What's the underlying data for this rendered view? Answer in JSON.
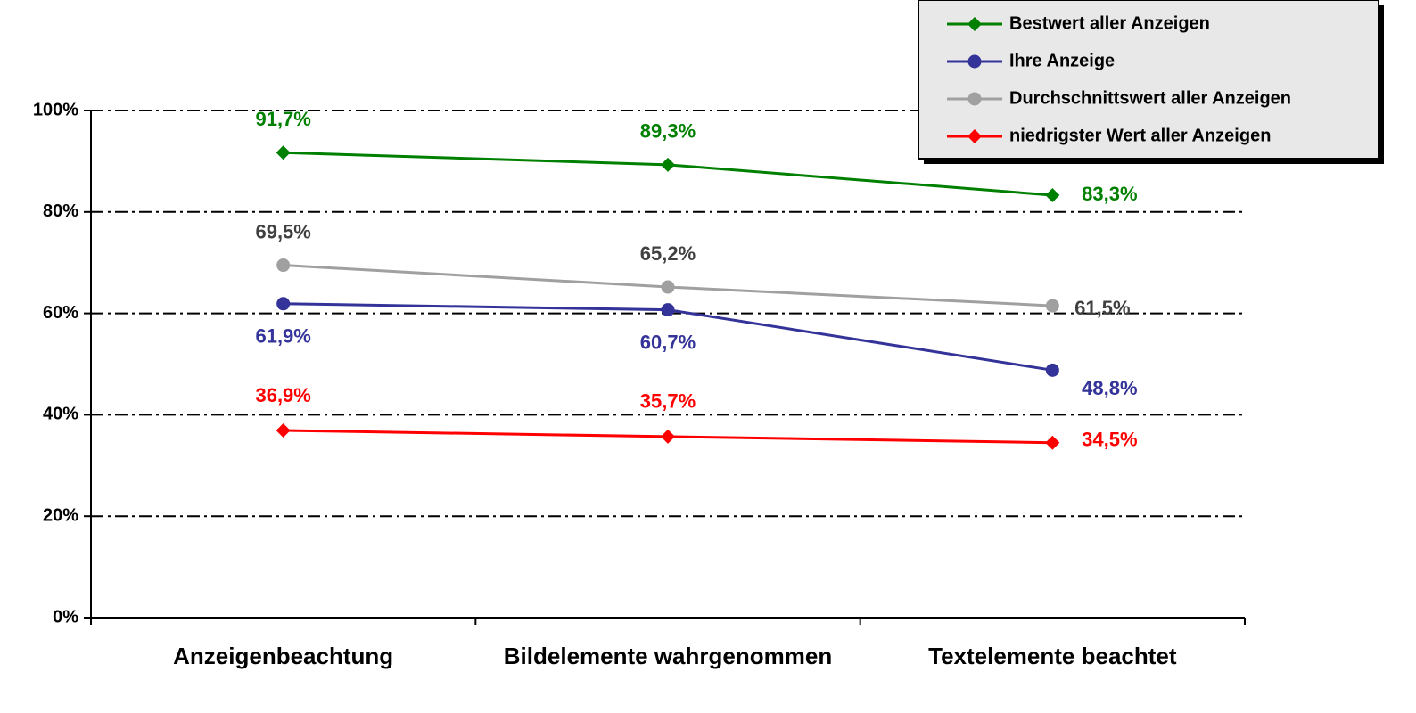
{
  "chart_data": {
    "type": "line",
    "categories": [
      "Anzeigenbeachtung",
      "Bildelemente wahrgenommen",
      "Textelemente beachtet"
    ],
    "ylim": [
      0,
      100
    ],
    "yticks": [
      {
        "value": 0,
        "label": "0%"
      },
      {
        "value": 20,
        "label": "20%"
      },
      {
        "value": 40,
        "label": "40%"
      },
      {
        "value": 60,
        "label": "60%"
      },
      {
        "value": 80,
        "label": "80%"
      },
      {
        "value": 100,
        "label": "100%"
      }
    ],
    "grid": true,
    "legend": "top-right",
    "series": [
      {
        "name": "Bestwert aller Anzeigen",
        "color": "#008000",
        "label_color": "#008000",
        "marker": "diamond",
        "values": [
          91.7,
          89.3,
          83.3
        ],
        "value_labels": [
          "91,7%",
          "89,3%",
          "83,3%"
        ]
      },
      {
        "name": "Ihre Anzeige",
        "color": "#333399",
        "label_color": "#333399",
        "marker": "circle",
        "values": [
          61.9,
          60.7,
          48.8
        ],
        "value_labels": [
          "61,9%",
          "60,7%",
          "48,8%"
        ]
      },
      {
        "name": "Durchschnittswert aller Anzeigen",
        "color": "#a0a0a0",
        "label_color": "#404040",
        "marker": "circle",
        "values": [
          69.5,
          65.2,
          61.5
        ],
        "value_labels": [
          "69,5%",
          "65,2%",
          "61,5%"
        ]
      },
      {
        "name": "niedrigster Wert aller Anzeigen",
        "color": "#ff0000",
        "label_color": "#ff0000",
        "marker": "diamond",
        "values": [
          36.9,
          35.7,
          34.5
        ],
        "value_labels": [
          "36,9%",
          "35,7%",
          "34,5%"
        ]
      }
    ]
  }
}
